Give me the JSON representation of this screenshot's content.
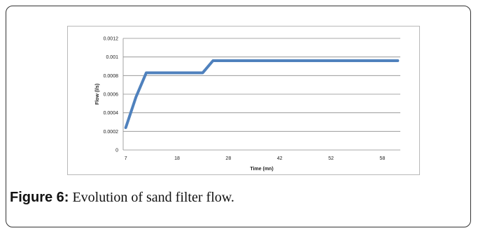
{
  "caption": {
    "label": "Figure 6:",
    "text": " Evolution of sand filter flow."
  },
  "chart_data": {
    "type": "line",
    "title": "",
    "xlabel": "Time (mn)",
    "ylabel": "Flow (l/s)",
    "x_ticks": [
      "7",
      "18",
      "28",
      "42",
      "52",
      "58"
    ],
    "y_ticks": [
      "0",
      "0.0002",
      "0.0004",
      "0.0006",
      "0.0008",
      "0.001",
      "0.0012"
    ],
    "ylim": [
      0,
      0.0012
    ],
    "grid": true,
    "legend": "none",
    "series_color": "#4f81bd",
    "series": [
      {
        "x_index": [
          0,
          2,
          4,
          15,
          17,
          53
        ],
        "values": [
          0.00024,
          0.00057,
          0.00083,
          0.00083,
          0.00096,
          0.00096
        ]
      }
    ]
  }
}
